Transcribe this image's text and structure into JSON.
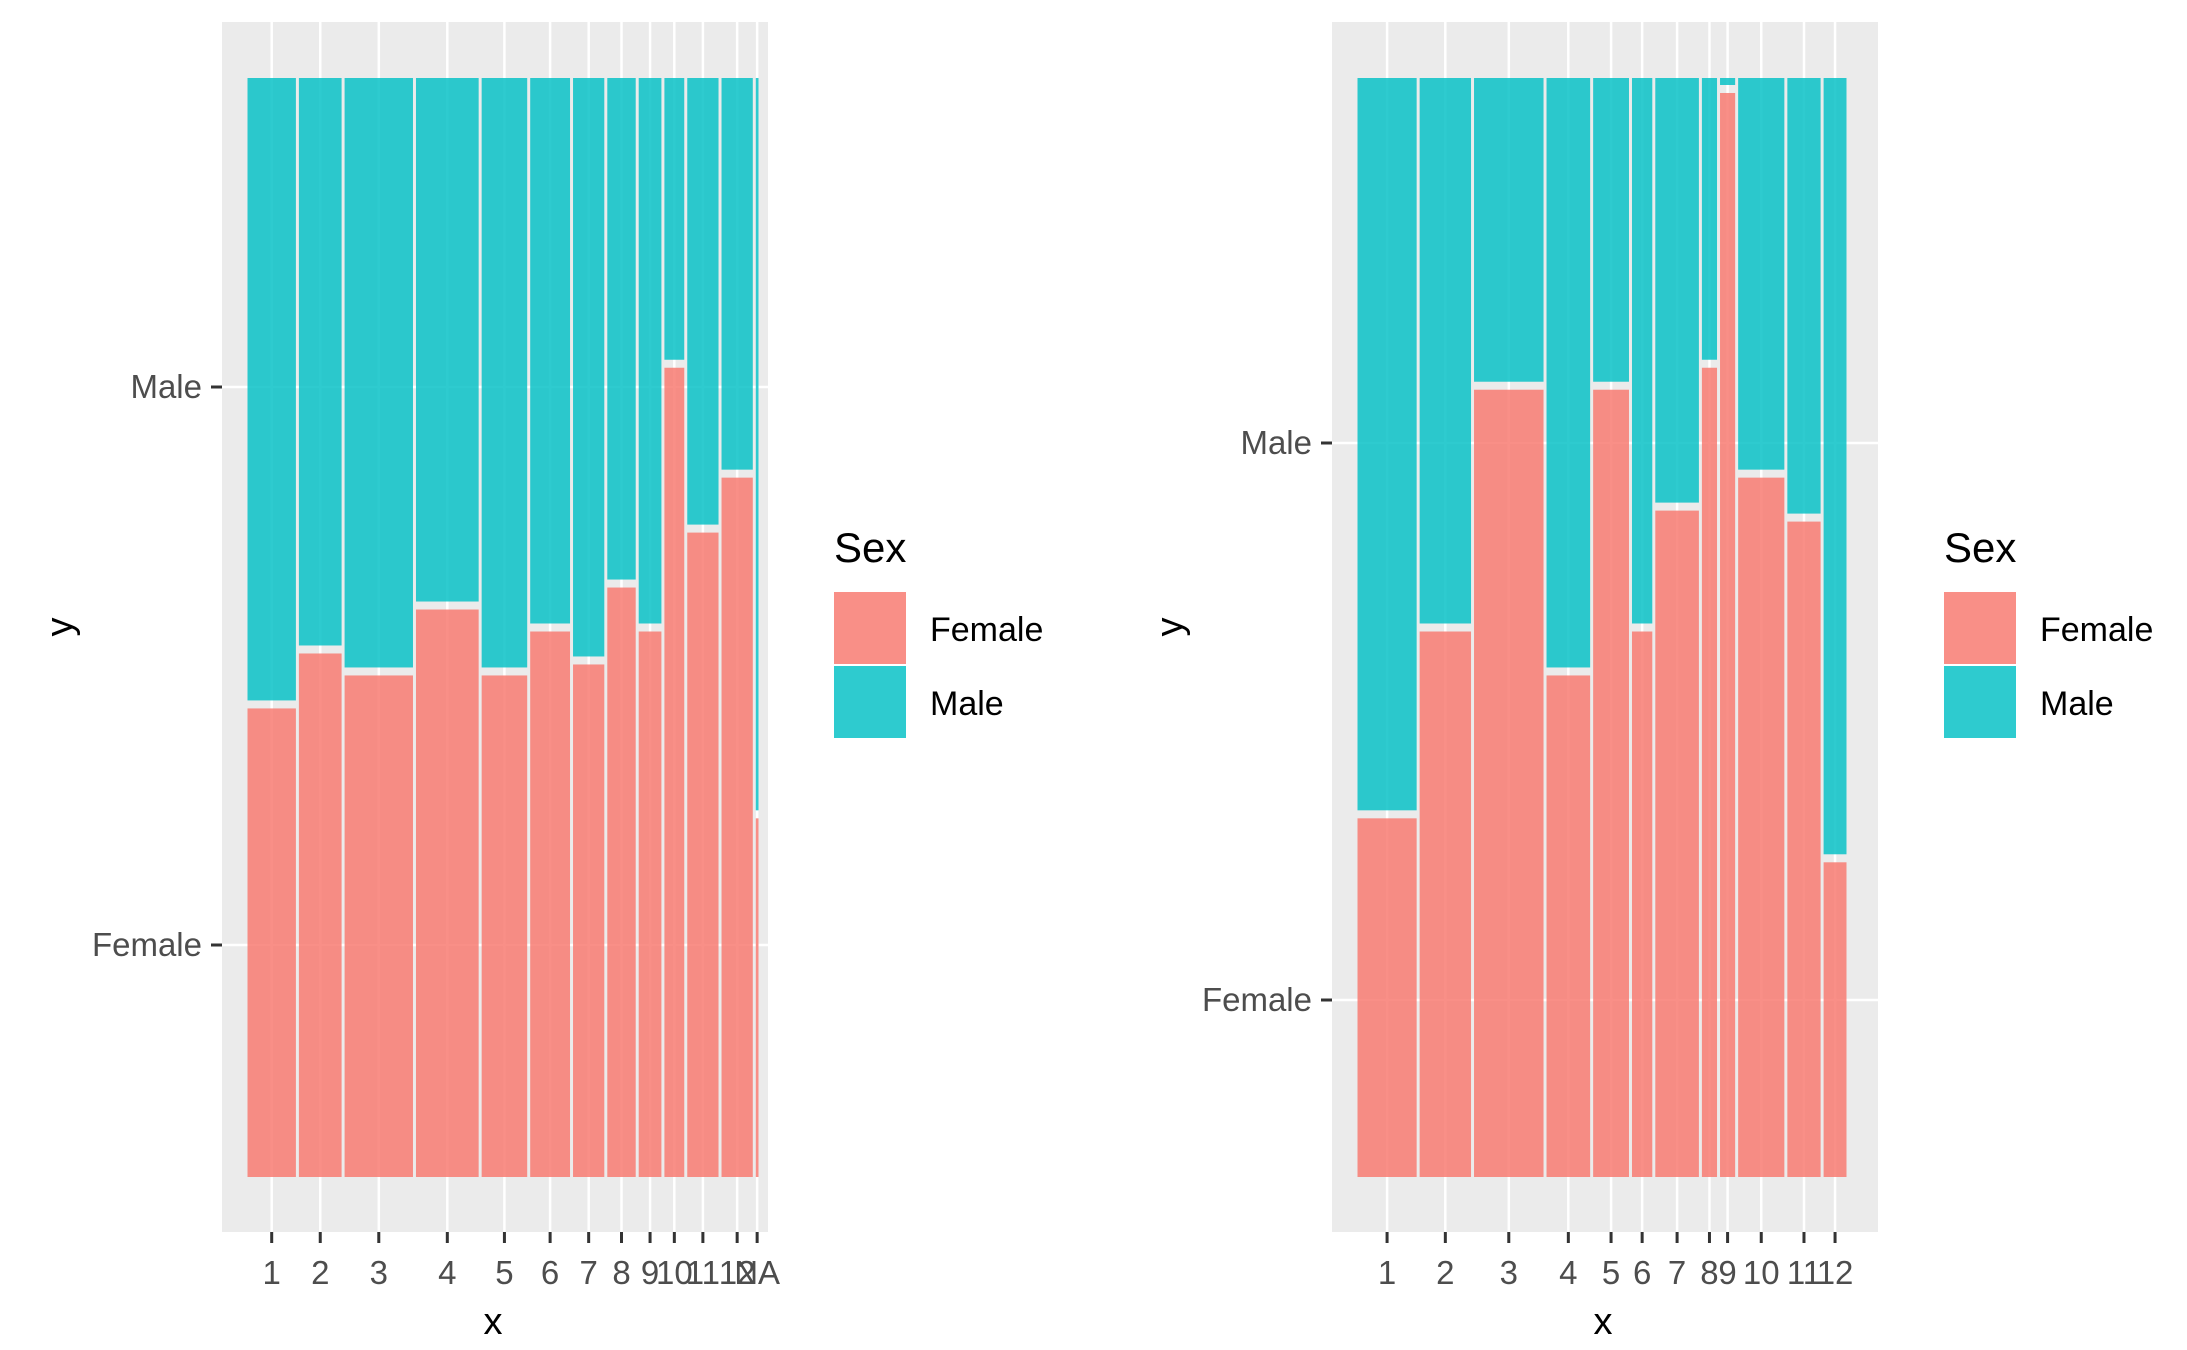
{
  "chart_data": [
    {
      "type": "bar",
      "subtype": "mosaic",
      "xlabel": "x",
      "ylabel": "y",
      "y_categories": [
        "Female",
        "Male"
      ],
      "categories": [
        "1",
        "2",
        "3",
        "4",
        "5",
        "6",
        "7",
        "8",
        "9",
        "10",
        "11",
        "12",
        "NA"
      ],
      "column_widths": [
        0.09,
        0.08,
        0.125,
        0.115,
        0.085,
        0.075,
        0.06,
        0.055,
        0.045,
        0.04,
        0.06,
        0.06,
        0.01
      ],
      "female_share": [
        0.43,
        0.48,
        0.46,
        0.52,
        0.46,
        0.5,
        0.47,
        0.54,
        0.5,
        0.74,
        0.59,
        0.64,
        0.33
      ],
      "legend": {
        "title": "Sex",
        "entries": [
          "Female",
          "Male"
        ]
      },
      "grid": true
    },
    {
      "type": "bar",
      "subtype": "mosaic",
      "xlabel": "x",
      "ylabel": "y",
      "y_categories": [
        "Female",
        "Male"
      ],
      "categories": [
        "1",
        "2",
        "3",
        "4",
        "5",
        "6",
        "7",
        "8",
        "9",
        "10",
        "11",
        "12"
      ],
      "column_widths": [
        0.12,
        0.105,
        0.14,
        0.09,
        0.075,
        0.045,
        0.09,
        0.035,
        0.035,
        0.095,
        0.07,
        0.05
      ],
      "female_share": [
        0.33,
        0.5,
        0.72,
        0.46,
        0.72,
        0.5,
        0.61,
        0.74,
        0.99,
        0.64,
        0.6,
        0.29
      ],
      "legend": {
        "title": "Sex",
        "entries": [
          "Female",
          "Male"
        ]
      },
      "grid": true
    }
  ],
  "colors": {
    "female": "#f8766d",
    "male": "#00bfc4",
    "panel_background": "#ebebeb",
    "gridline": "#ffffff"
  }
}
